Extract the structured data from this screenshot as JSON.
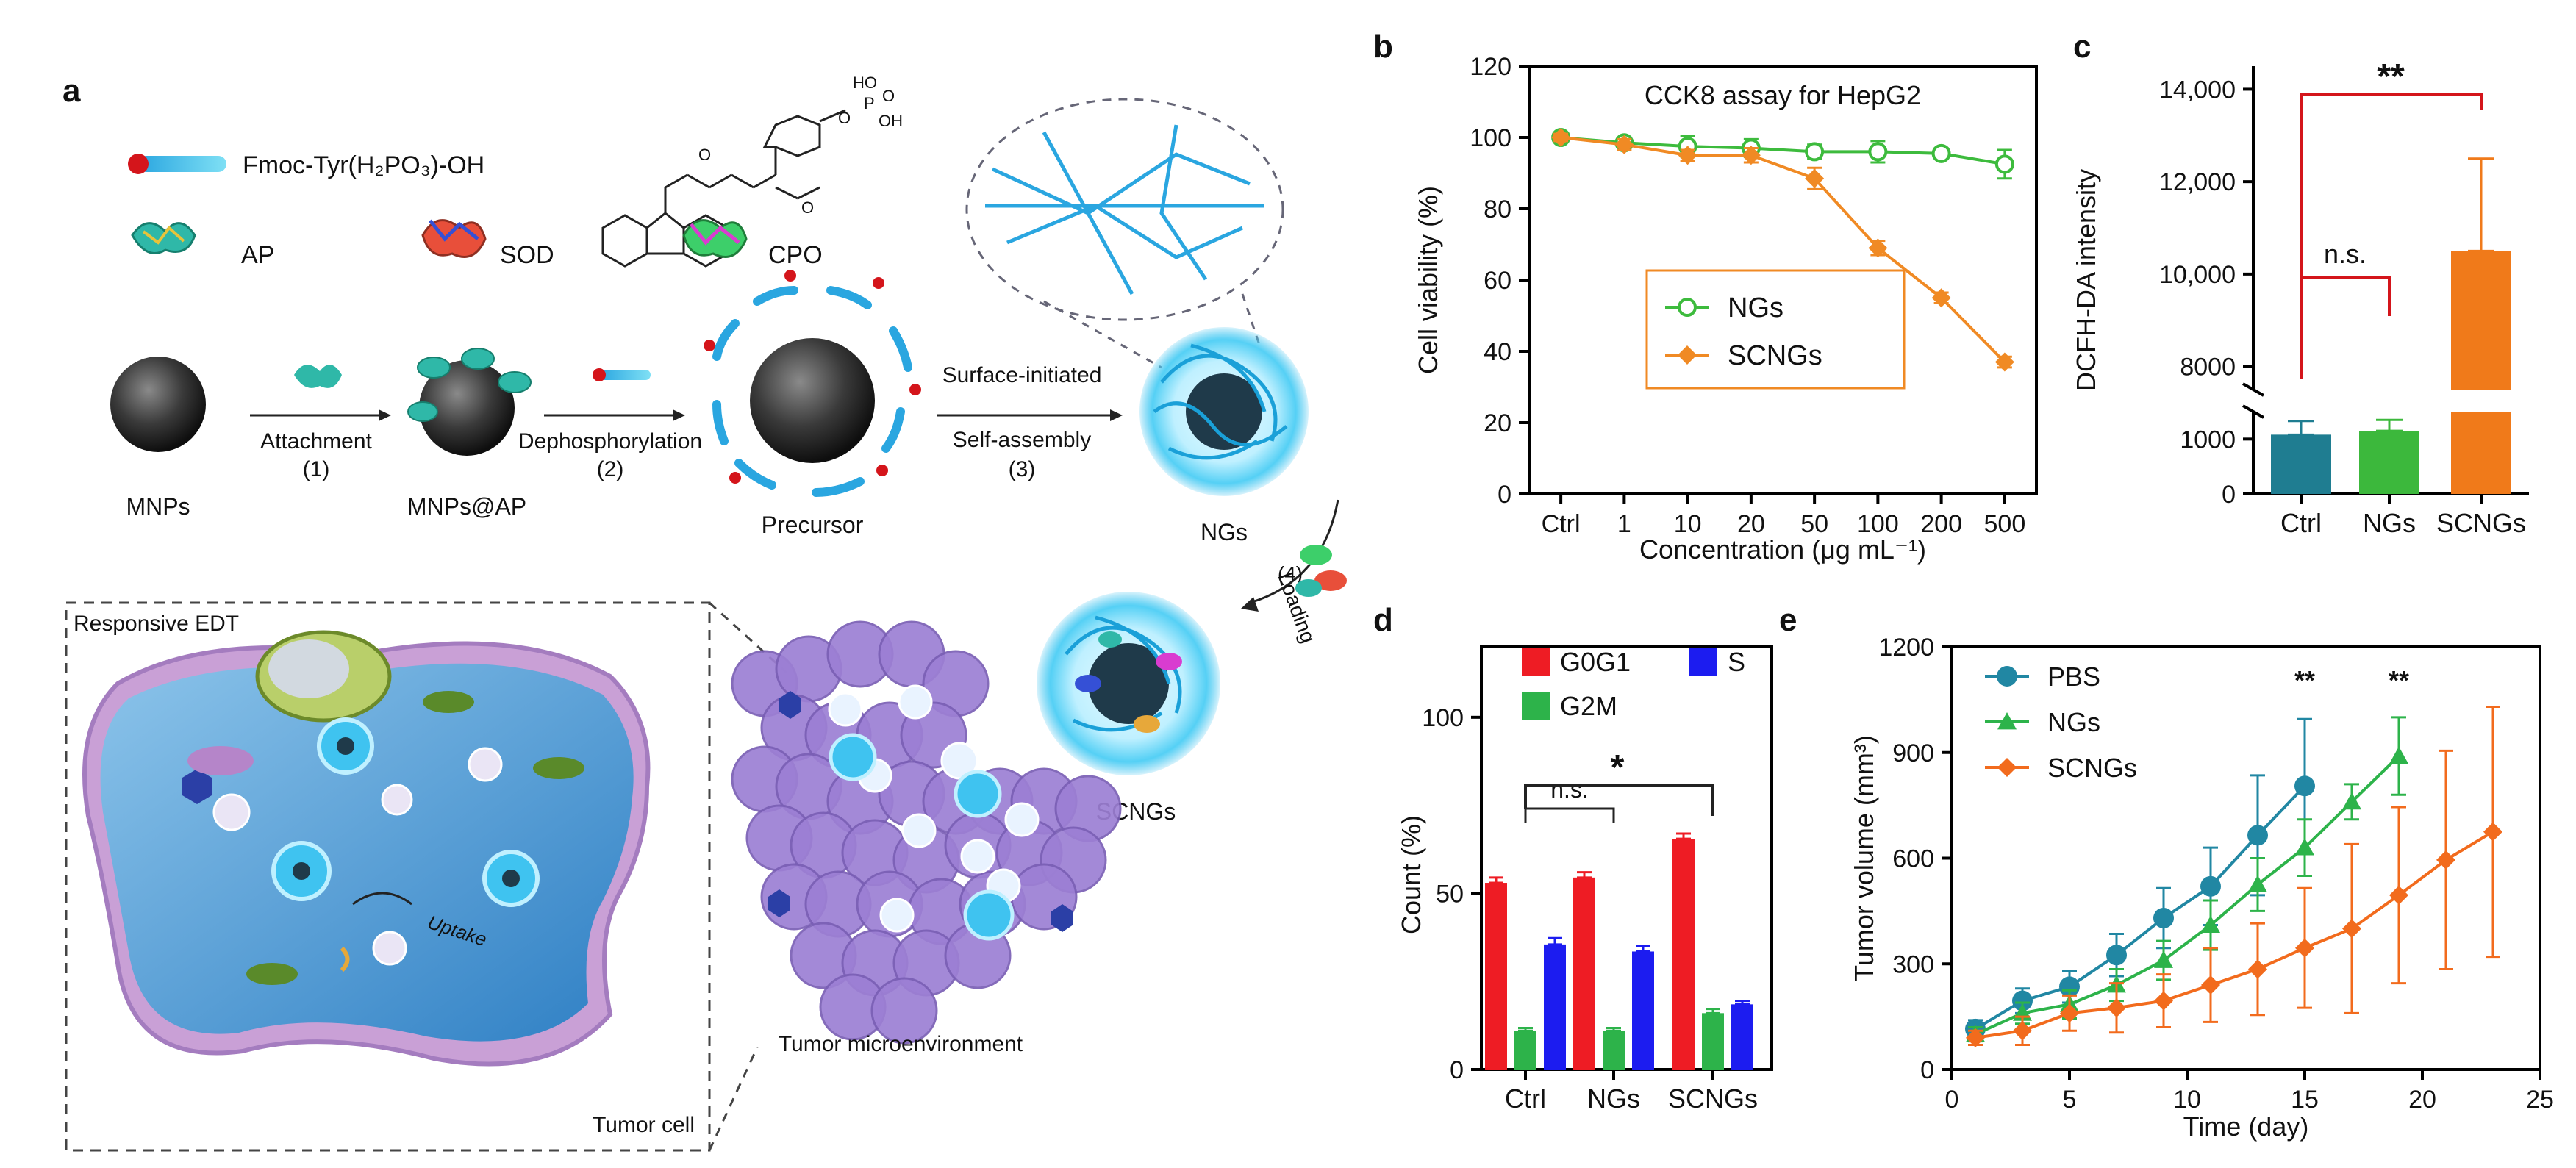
{
  "panels": {
    "a": "a",
    "b": "b",
    "c": "c",
    "d": "d",
    "e": "e"
  },
  "scheme": {
    "fmoc_label": "Fmoc-Tyr(H₂PO₃)-OH",
    "phospho_labels": [
      "HO",
      "P",
      "OH",
      "O",
      "O"
    ],
    "enzymes": [
      "AP",
      "SOD",
      "CPO"
    ],
    "steps": {
      "s1": "Attachment",
      "s1n": "(1)",
      "s2": "Dephosphorylation",
      "s2n": "(2)",
      "s3a": "Surface-initiated",
      "s3b": "Self-assembly",
      "s3n": "(3)",
      "s4n": "(4)",
      "s4": "Loading"
    },
    "species": {
      "mnps": "MNPs",
      "mnpsap": "MNPs@AP",
      "precursor": "Precursor",
      "ngs": "NGs",
      "scngs": "SCNGs"
    },
    "cell": {
      "title": "Responsive EDT",
      "tumor": "Tumor cell",
      "uptake": "Uptake",
      "tme": "Tumor microenvironment"
    },
    "colors": {
      "sphere": "#2b2b2b",
      "glow": "#3fc3f0",
      "fiber": "#1aa0d8",
      "membrane": "#c9a0d6",
      "cytoplasm": "#4ea2d8",
      "tme": "#9c7fd4"
    }
  },
  "chart_b": {
    "type": "line",
    "title": "CCK8 assay for HepG2",
    "xlabel": "Concentration (μg mL⁻¹)",
    "ylabel": "Cell viability (%)",
    "categories": [
      "Ctrl",
      "1",
      "10",
      "20",
      "50",
      "100",
      "200",
      "500"
    ],
    "ylim": [
      0,
      120
    ],
    "yticks": [
      "0",
      "20",
      "40",
      "60",
      "80",
      "100",
      "120"
    ],
    "series": [
      {
        "name": "NGs",
        "color": "#3dbb3d",
        "marker": "circle-open",
        "values": [
          100,
          98.5,
          97.5,
          97,
          96,
          96,
          95.5,
          92.5
        ],
        "errors": [
          1,
          1.5,
          3,
          2.5,
          2,
          3,
          1.5,
          4
        ]
      },
      {
        "name": "SCNGs",
        "color": "#f08a24",
        "marker": "diamond",
        "values": [
          100,
          98,
          95,
          95,
          88.5,
          69,
          55,
          37
        ],
        "errors": [
          1,
          1.5,
          1.5,
          2,
          3,
          2,
          1.5,
          1.5
        ]
      }
    ]
  },
  "chart_c": {
    "type": "bar",
    "xlabel": "",
    "ylabel": "DCFH-DA intensity",
    "categories": [
      "Ctrl",
      "NGs",
      "SCNGs"
    ],
    "yticks_lower": [
      "0",
      "1000"
    ],
    "yticks_upper": [
      "8000",
      "10,000",
      "12,000",
      "14,000"
    ],
    "values": [
      1080,
      1150,
      10500
    ],
    "errors": [
      250,
      200,
      2000
    ],
    "colors": [
      "#1f7d91",
      "#3cb83c",
      "#f07a1a"
    ],
    "sig_high": "**",
    "sig_low": "n.s."
  },
  "chart_d": {
    "type": "bar",
    "ylabel": "Count (%)",
    "categories": [
      "Ctrl",
      "NGs",
      "SCNGs"
    ],
    "ylim": [
      0,
      120
    ],
    "yticks": [
      "0",
      "50",
      "100"
    ],
    "series": [
      {
        "name": "G0G1",
        "color": "#ee1c24",
        "values": [
          53,
          54.5,
          65.5
        ],
        "errors": [
          1.5,
          1.5,
          1.5
        ]
      },
      {
        "name": "G2M",
        "color": "#2db34a",
        "values": [
          11,
          11,
          16
        ],
        "errors": [
          0.8,
          0.8,
          1.2
        ]
      },
      {
        "name": "S",
        "color": "#1c1cf0",
        "values": [
          35.5,
          33.5,
          18.5
        ],
        "errors": [
          1.8,
          1.5,
          1
        ]
      }
    ],
    "sig_high": "*",
    "sig_low": "n.s."
  },
  "chart_e": {
    "type": "line",
    "xlabel": "Time (day)",
    "ylabel": "Tumor volume (mm³)",
    "xlim": [
      0,
      25
    ],
    "ylim": [
      0,
      1200
    ],
    "xticks": [
      "0",
      "5",
      "10",
      "15",
      "20",
      "25"
    ],
    "yticks": [
      "0",
      "300",
      "600",
      "900",
      "1200"
    ],
    "series": [
      {
        "name": "PBS",
        "color": "#2187a3",
        "marker": "circle",
        "x": [
          1,
          3,
          5,
          7,
          9,
          11,
          13,
          15
        ],
        "values": [
          115,
          195,
          235,
          325,
          430,
          520,
          665,
          805
        ],
        "errors": [
          25,
          35,
          45,
          60,
          85,
          110,
          170,
          190
        ]
      },
      {
        "name": "NGs",
        "color": "#2db34a",
        "marker": "triangle",
        "x": [
          1,
          3,
          5,
          7,
          9,
          11,
          13,
          15,
          17,
          19
        ],
        "values": [
          100,
          160,
          185,
          240,
          310,
          410,
          525,
          630,
          760,
          890
        ],
        "errors": [
          20,
          30,
          40,
          45,
          55,
          70,
          75,
          80,
          50,
          110
        ]
      },
      {
        "name": "SCNGs",
        "color": "#f26b1d",
        "marker": "diamond",
        "x": [
          1,
          3,
          5,
          7,
          9,
          11,
          13,
          15,
          17,
          19,
          21,
          23
        ],
        "values": [
          90,
          110,
          160,
          175,
          195,
          240,
          285,
          345,
          400,
          495,
          595,
          675
        ],
        "errors": [
          20,
          40,
          50,
          70,
          75,
          105,
          130,
          170,
          240,
          250,
          310,
          355
        ]
      }
    ],
    "sig": [
      "**",
      "**"
    ],
    "sig_x": [
      15,
      19
    ]
  }
}
